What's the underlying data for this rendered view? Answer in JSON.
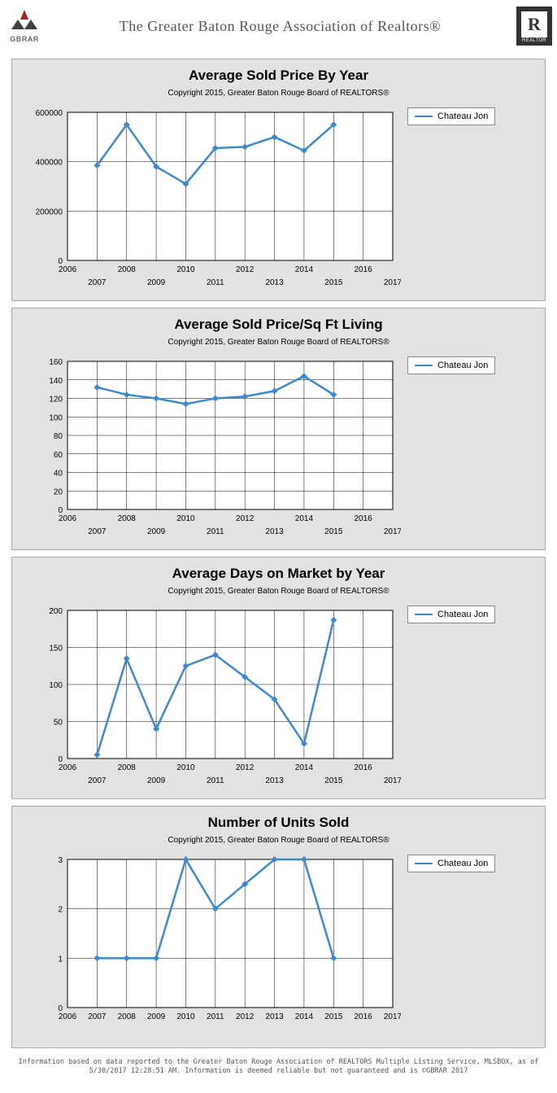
{
  "header": {
    "gbrar_label": "GBRAR",
    "org_title": "The Greater Baton Rouge Association of Realtors®",
    "realtor_label": "REALTOR"
  },
  "series_name": "Chateau Jon",
  "line_color": "#3d89d0",
  "grid_color": "#000000",
  "bg_color": "#e2e2e2",
  "plot_bg": "#ffffff",
  "tick_font_size": 10,
  "title_font_size": 17,
  "sub_font_size": 10,
  "copyright": "Copyright 2015, Greater Baton Rouge Board of REALTORS®",
  "charts": [
    {
      "id": "avg-price",
      "title": "Average Sold Price By Year",
      "xlim": [
        2006,
        2017
      ],
      "ylim": [
        0,
        600000
      ],
      "ytick_step": 200000,
      "ytick_format": "plain",
      "x_years": [
        2007,
        2008,
        2009,
        2010,
        2011,
        2012,
        2013,
        2014,
        2015
      ],
      "values": [
        385000,
        550000,
        380000,
        310000,
        455000,
        460000,
        500000,
        445000,
        550000
      ],
      "xtick_top": [
        2006,
        2008,
        2010,
        2012,
        2014,
        2016
      ],
      "xtick_bot": [
        2007,
        2009,
        2011,
        2013,
        2015,
        2017
      ]
    },
    {
      "id": "price-sqft",
      "title": "Average Sold Price/Sq Ft Living",
      "xlim": [
        2006,
        2017
      ],
      "ylim": [
        0,
        160
      ],
      "ytick_step": 20,
      "ytick_format": "plain",
      "x_years": [
        2007,
        2008,
        2009,
        2010,
        2011,
        2012,
        2013,
        2014,
        2015
      ],
      "values": [
        132,
        124,
        120,
        114,
        120,
        122,
        128,
        144,
        124
      ],
      "xtick_top": [
        2006,
        2008,
        2010,
        2012,
        2014,
        2016
      ],
      "xtick_bot": [
        2007,
        2009,
        2011,
        2013,
        2015,
        2017
      ]
    },
    {
      "id": "days-market",
      "title": "Average Days on Market by Year",
      "xlim": [
        2006,
        2017
      ],
      "ylim": [
        0,
        200
      ],
      "ytick_step": 50,
      "ytick_format": "plain",
      "x_years": [
        2007,
        2008,
        2009,
        2010,
        2011,
        2012,
        2013,
        2014,
        2015
      ],
      "values": [
        5,
        135,
        40,
        125,
        140,
        110,
        80,
        20,
        187
      ],
      "xtick_top": [
        2006,
        2008,
        2010,
        2012,
        2014,
        2016
      ],
      "xtick_bot": [
        2007,
        2009,
        2011,
        2013,
        2015,
        2017
      ]
    },
    {
      "id": "units-sold",
      "title": "Number of Units Sold",
      "xlim": [
        2006,
        2017
      ],
      "ylim": [
        0,
        3
      ],
      "ytick_step": 1,
      "ytick_format": "plain",
      "x_years": [
        2007,
        2008,
        2009,
        2010,
        2011,
        2012,
        2013,
        2014,
        2015
      ],
      "values": [
        1,
        1,
        1,
        3,
        2,
        2.5,
        3,
        3,
        1
      ],
      "xtick_top": [
        2006,
        2007,
        2008,
        2009,
        2010,
        2011,
        2012,
        2013,
        2014,
        2015,
        2016,
        2017
      ],
      "xtick_bot": []
    }
  ],
  "footer_line1": "Information based on data reported to the Greater Baton Rouge Association of REALTORS Multiple Listing Service, MLSBOX, as of",
  "footer_line2": "5/30/2017 12:28:51 AM. Information is deemed reliable but not guaranteed and is ©GBRAR 2017"
}
